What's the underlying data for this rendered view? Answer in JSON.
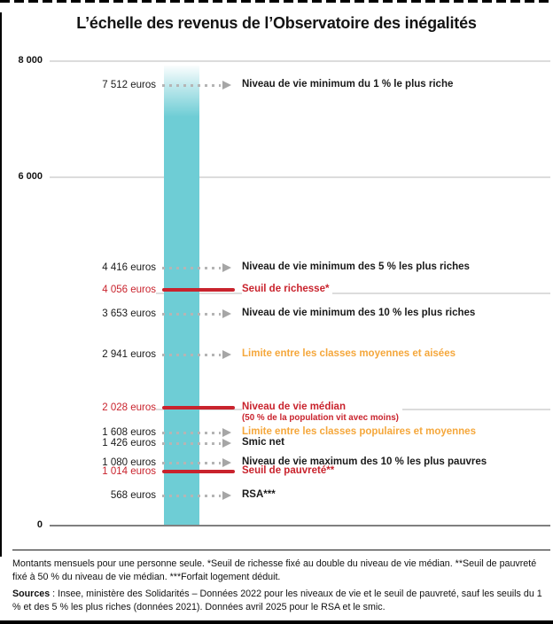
{
  "title": "L’échelle des revenus de l’Observatoire des inégalités",
  "colors": {
    "bar_teal": "#6ecdd5",
    "red": "#c9232d",
    "orange": "#f5a73b",
    "dark": "#1a1a1a",
    "gridline": "#dcdcdc",
    "zero_axis": "#7f7f7f",
    "leader_dots": "#b5b5b5"
  },
  "chart_data": {
    "type": "bar",
    "title": "L’échelle des revenus de l’Observatoire des inégalités",
    "xlabel": "",
    "ylabel": "",
    "ylim": [
      0,
      8000
    ],
    "grid": true,
    "legend": false,
    "y_axis_ticks": [
      {
        "value": 8000,
        "label": "8 000"
      },
      {
        "value": 6000,
        "label": "6 000"
      },
      {
        "value": 4000,
        "label": "4 000"
      },
      {
        "value": 2000,
        "label": "2 000"
      },
      {
        "value": 0,
        "label": "0"
      }
    ],
    "bar": {
      "top_value": 8000,
      "fade_top": true
    },
    "markers": [
      {
        "value": 7512,
        "value_label": "7 512 euros",
        "label": "Niveau de vie minimum du 1 % le plus riche",
        "sublabel": "",
        "style": "dotted",
        "color": "dark"
      },
      {
        "value": 4416,
        "value_label": "4 416 euros",
        "label": "Niveau de vie minimum des 5 % les plus riches",
        "sublabel": "",
        "style": "dotted",
        "color": "dark"
      },
      {
        "value": 4056,
        "value_label": "4 056 euros",
        "label": "Seuil de richesse*",
        "sublabel": "",
        "style": "solid",
        "color": "red"
      },
      {
        "value": 3653,
        "value_label": "3 653 euros",
        "label": "Niveau de vie minimum des 10 % les plus riches",
        "sublabel": "",
        "style": "dotted",
        "color": "dark"
      },
      {
        "value": 2941,
        "value_label": "2 941 euros",
        "label": "Limite entre les classes moyennes et aisées",
        "sublabel": "",
        "style": "dotted",
        "color": "orange"
      },
      {
        "value": 2028,
        "value_label": "2 028 euros",
        "label": "Niveau de vie médian",
        "sublabel": "(50 % de la population vit avec moins)",
        "style": "solid",
        "color": "red"
      },
      {
        "value": 1608,
        "value_label": "1 608 euros",
        "label": "Limite entre les classes populaires et moyennes",
        "sublabel": "",
        "style": "dotted",
        "color": "orange"
      },
      {
        "value": 1426,
        "value_label": "1 426 euros",
        "label": "Smic net",
        "sublabel": "",
        "style": "dotted",
        "color": "dark"
      },
      {
        "value": 1080,
        "value_label": "1 080 euros",
        "label": "Niveau de vie maximum des 10 % les plus pauvres",
        "sublabel": "",
        "style": "dotted",
        "color": "dark"
      },
      {
        "value": 1014,
        "value_label": "1 014 euros",
        "label": "Seuil de pauvreté**",
        "sublabel": "",
        "style": "solid",
        "color": "red"
      },
      {
        "value": 568,
        "value_label": "568 euros",
        "label": "RSA***",
        "sublabel": "",
        "style": "dotted",
        "color": "dark"
      }
    ]
  },
  "footer": {
    "note": "Montants mensuels pour une personne seule. *Seuil de richesse fixé au double du niveau de vie médian. **Seuil de pauvreté fixé à 50 % du niveau de vie médian. ***Forfait logement déduit.",
    "sources_label": "Sources",
    "sources_text": " : Insee, ministère des Solidarités – Données 2022 pour les niveaux de vie et le seuil de pauvreté, sauf les seuils du 1 % et des 5 % les plus riches (données 2021). Données avril 2025 pour le RSA et le smic."
  }
}
